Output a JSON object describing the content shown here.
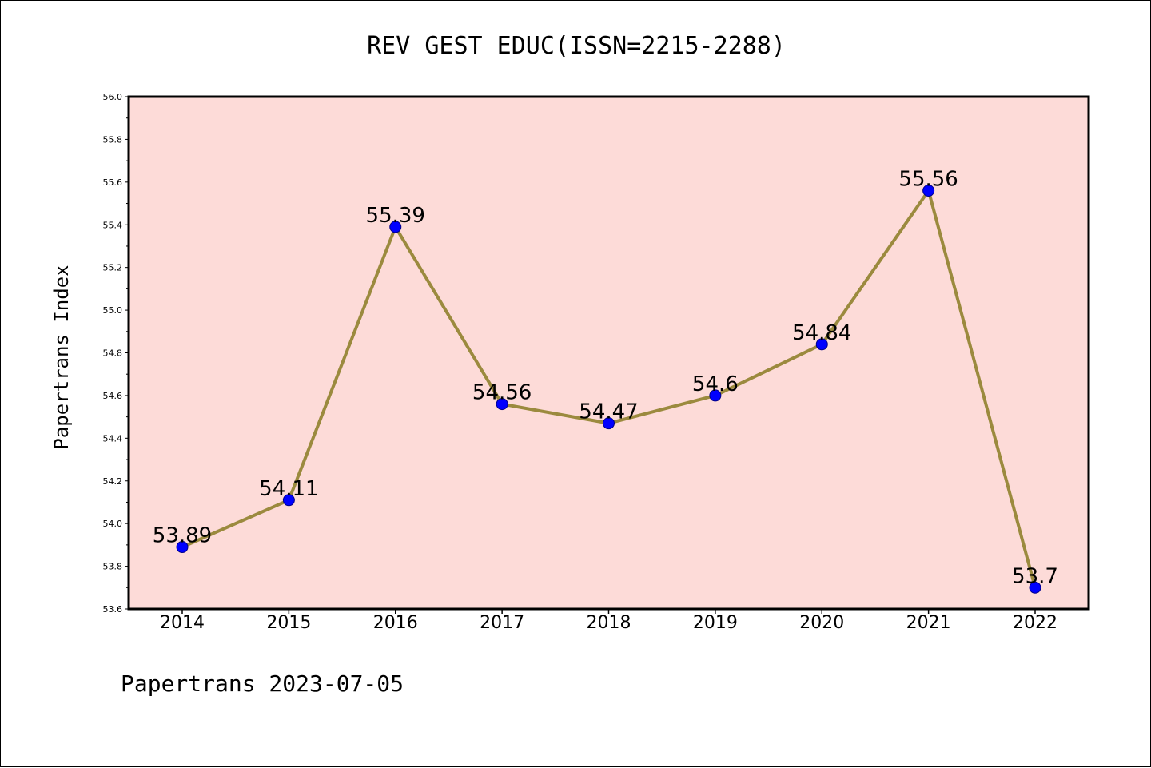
{
  "chart_data": {
    "type": "line",
    "title": "REV GEST EDUC(ISSN=2215-2288)",
    "xlabel": "",
    "ylabel": "Papertrans Index",
    "categories": [
      "2014",
      "2015",
      "2016",
      "2017",
      "2018",
      "2019",
      "2020",
      "2021",
      "2022"
    ],
    "values": [
      53.89,
      54.11,
      55.39,
      54.56,
      54.47,
      54.6,
      54.84,
      55.56,
      53.7
    ],
    "data_labels": [
      "53.89",
      "54.11",
      "55.39",
      "54.56",
      "54.47",
      "54.6",
      "54.84",
      "55.56",
      "53.7"
    ],
    "ylim": [
      53.6,
      56.0
    ],
    "yticks": [
      "53.6",
      "53.8",
      "54.0",
      "54.2",
      "54.4",
      "54.6",
      "54.8",
      "55.0",
      "55.2",
      "55.4",
      "55.6",
      "55.8",
      "56.0"
    ],
    "grid": false,
    "legend": "none",
    "colors": {
      "plot_background": "#fddbd8",
      "line": "#9b8a3e",
      "marker": "#0000ff",
      "marker_edge": "#00008b"
    }
  },
  "footer": {
    "text": "Papertrans 2023-07-05"
  }
}
